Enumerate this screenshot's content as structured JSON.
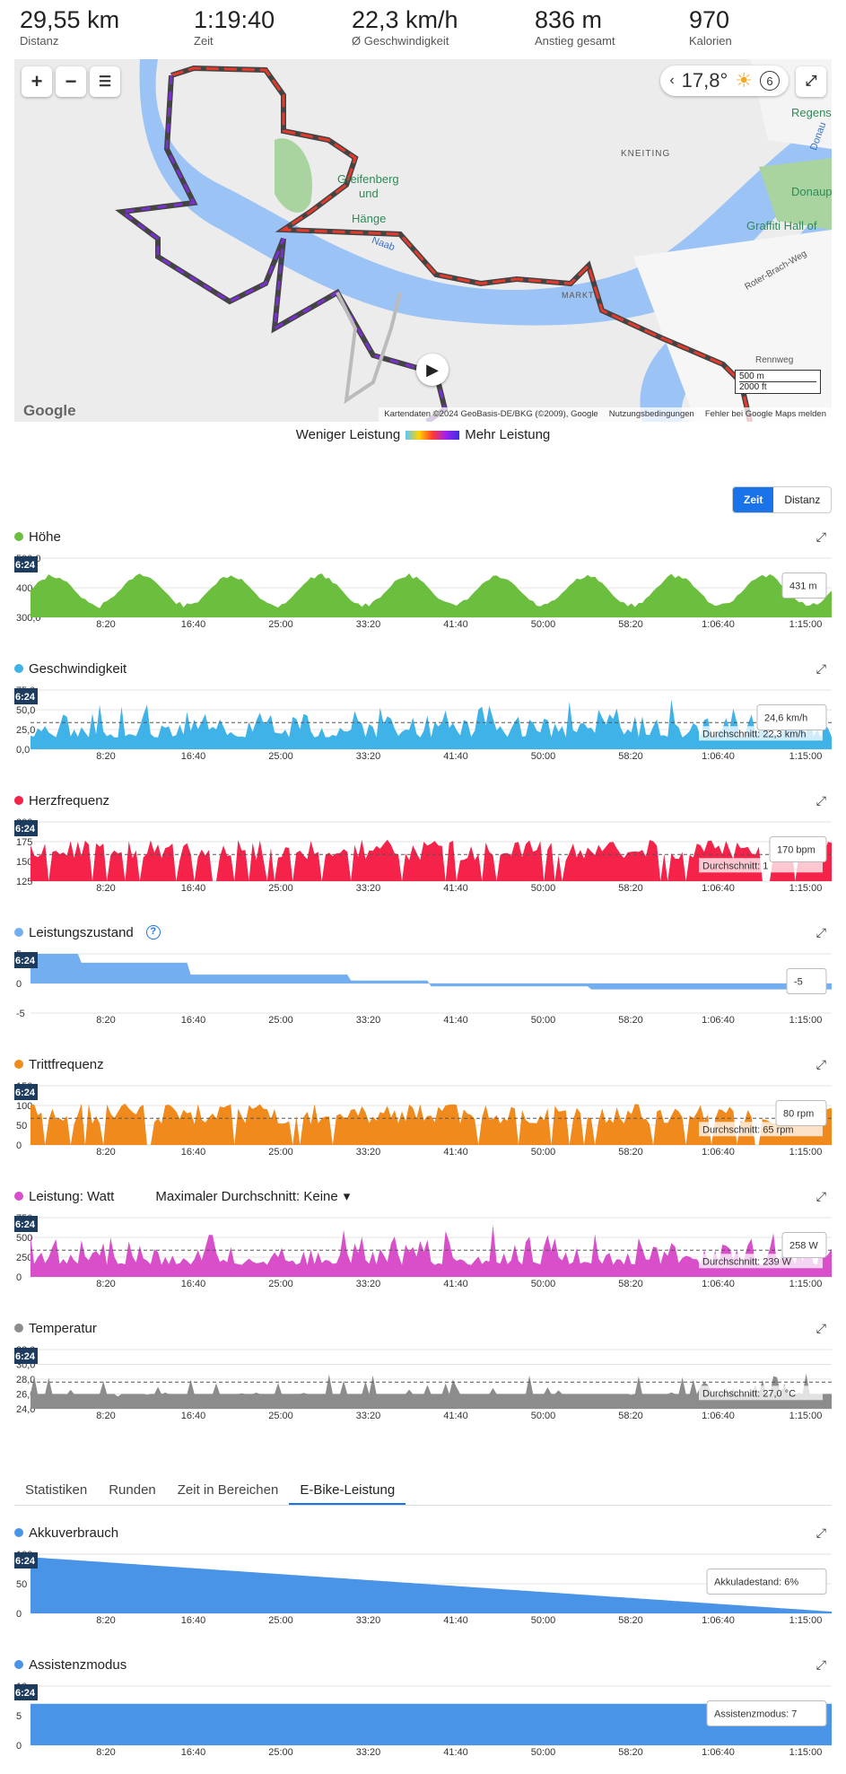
{
  "summary": [
    {
      "value": "29,55 km",
      "label": "Distanz"
    },
    {
      "value": "1:19:40",
      "label": "Zeit"
    },
    {
      "value": "22,3 km/h",
      "label": "Ø Geschwindigkeit"
    },
    {
      "value": "836 m",
      "label": "Anstieg gesamt"
    },
    {
      "value": "970",
      "label": "Kalorien"
    }
  ],
  "map": {
    "zoom_in": "+",
    "zoom_out": "−",
    "temperature": "17,8°",
    "weather_icon": "sun-icon",
    "wind": "6",
    "labels": {
      "kneiting": "KNEITING",
      "regens": "Regens",
      "donaup": "Donaup",
      "graffiti": "Graffiti Hall of",
      "greifenberg": "Greifenberg",
      "und": "und",
      "hange": "Hänge",
      "naab": "Naab",
      "marckt": "MARKT",
      "roter_brach": "Roter-Brach-Weg",
      "rennweg": "Rennweg",
      "donau": "Donau"
    },
    "scale_m": "500 m",
    "scale_ft": "2000 ft",
    "attribution": "Kartendaten ©2024 GeoBasis-DE/BKG (©2009), Google",
    "terms": "Nutzungsbedingungen",
    "report": "Fehler bei Google Maps melden",
    "google": "Google"
  },
  "legend": {
    "left": "Weniger Leistung",
    "right": "Mehr Leistung"
  },
  "toggle": {
    "time": "Zeit",
    "distance": "Distanz"
  },
  "x_ticks": [
    "8:20",
    "16:40",
    "25:00",
    "33:20",
    "41:40",
    "50:00",
    "58:20",
    "1:06:40",
    "1:15:00"
  ],
  "cursor_label": "6:24",
  "charts": [
    {
      "title": "Höhe",
      "color": "#6cbf3e",
      "y_ticks": [
        "500,0",
        "400,0",
        "300,0"
      ],
      "tooltip": "431 m",
      "avg": ""
    },
    {
      "title": "Geschwindigkeit",
      "color": "#3fb2e8",
      "y_ticks": [
        "75,0",
        "50,0",
        "25,0",
        "0,0"
      ],
      "tooltip": "24,6 km/h",
      "avg": "Durchschnitt: 22,3 km/h"
    },
    {
      "title": "Herzfrequenz",
      "color": "#f5224a",
      "y_ticks": [
        "200",
        "175",
        "150",
        "125"
      ],
      "tooltip": "170 bpm",
      "avg": "Durchschnitt: 1"
    },
    {
      "title": "Leistungszustand",
      "color": "#73aff0",
      "y_ticks": [
        "5",
        "0",
        "-5"
      ],
      "tooltip": "-5",
      "avg": ""
    },
    {
      "title": "Trittfrequenz",
      "color": "#f08a1c",
      "y_ticks": [
        "150",
        "100",
        "50",
        "0"
      ],
      "tooltip": "80 rpm",
      "avg": "Durchschnitt: 65 rpm"
    },
    {
      "title": "Leistung: Watt",
      "color": "#d84fc9",
      "y_ticks": [
        "750",
        "500",
        "250",
        "0"
      ],
      "tooltip": "258 W",
      "avg": "Durchschnitt: 239 W"
    },
    {
      "title": "Temperatur",
      "color": "#8c8c8c",
      "y_ticks": [
        "32,0",
        "30,0",
        "28,0",
        "26,0",
        "24,0"
      ],
      "tooltip": "",
      "avg": "Durchschnitt: 27,0 °C"
    },
    {
      "title": "Akkuverbrauch",
      "color": "#4a94e8",
      "y_ticks": [
        "100",
        "50",
        "0"
      ],
      "tooltip": "Akkuladestand: 6%",
      "avg": ""
    },
    {
      "title": "Assistenzmodus",
      "color": "#4a94e8",
      "y_ticks": [
        "10",
        "5",
        "0"
      ],
      "tooltip": "Assistenzmodus: 7",
      "avg": ""
    }
  ],
  "power_max_avg": "Maximaler Durchschnitt: Keine",
  "tabs": [
    "Statistiken",
    "Runden",
    "Zeit in Bereichen",
    "E-Bike-Leistung"
  ],
  "chart_data": [
    {
      "type": "area",
      "title": "Höhe",
      "ylim": [
        300,
        500
      ],
      "x_ticks": [
        "8:20",
        "16:40",
        "25:00",
        "33:20",
        "41:40",
        "50:00",
        "58:20",
        "1:06:40",
        "1:15:00"
      ]
    },
    {
      "type": "area",
      "title": "Geschwindigkeit",
      "ylim": [
        0,
        75
      ],
      "average": 22.3
    },
    {
      "type": "area",
      "title": "Herzfrequenz",
      "ylim": [
        125,
        200
      ]
    },
    {
      "type": "area",
      "title": "Leistungszustand",
      "ylim": [
        -5,
        5
      ]
    },
    {
      "type": "area",
      "title": "Trittfrequenz",
      "ylim": [
        0,
        150
      ],
      "average": 65
    },
    {
      "type": "area",
      "title": "Leistung: Watt",
      "ylim": [
        0,
        750
      ],
      "average": 239
    },
    {
      "type": "area",
      "title": "Temperatur",
      "ylim": [
        24,
        32
      ],
      "average": 27.0
    },
    {
      "type": "area",
      "title": "Akkuverbrauch",
      "ylim": [
        0,
        100
      ]
    },
    {
      "type": "area",
      "title": "Assistenzmodus",
      "ylim": [
        0,
        10
      ],
      "values": [
        7
      ]
    }
  ]
}
